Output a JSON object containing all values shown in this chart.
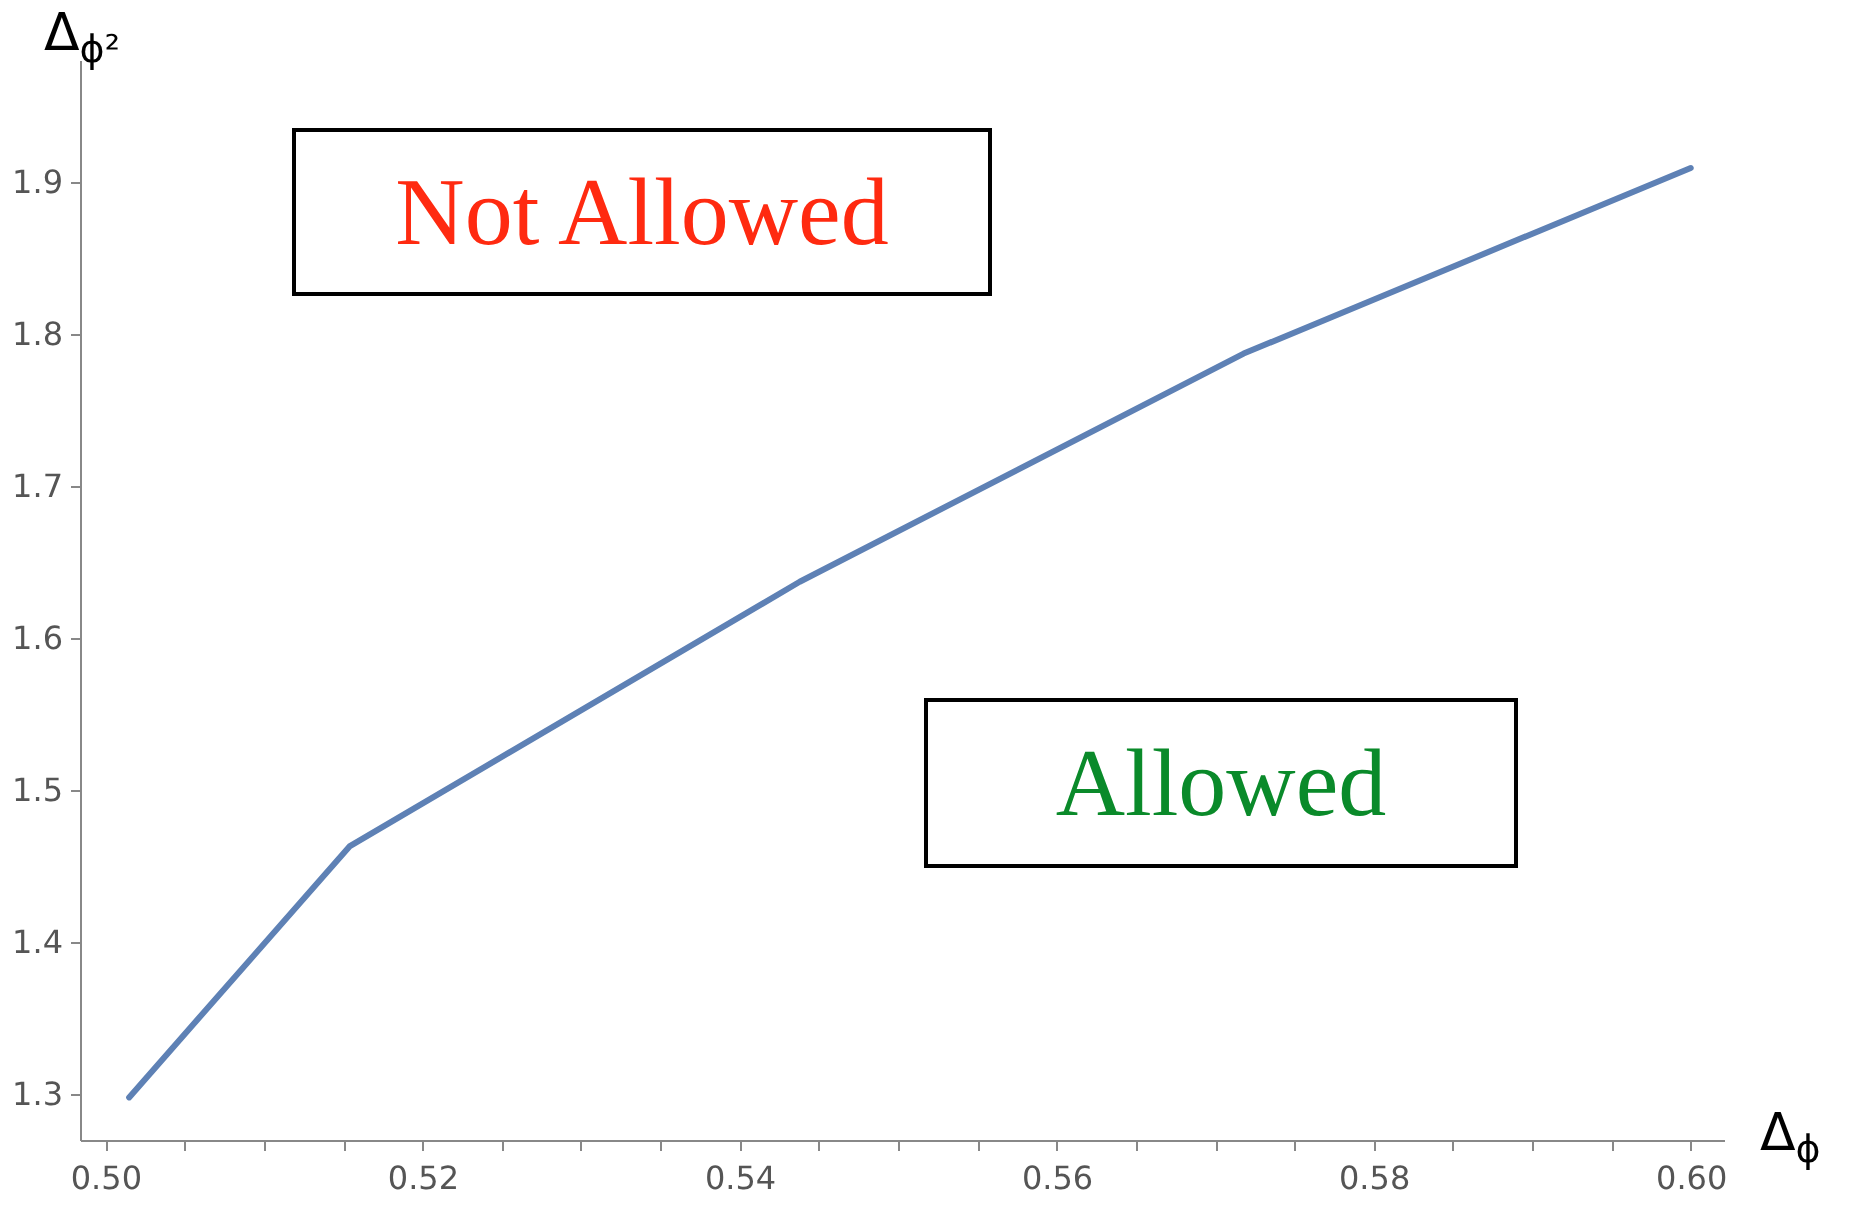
{
  "chart_data": {
    "type": "line",
    "xlabel": "Δ$_{ϕ}$",
    "ylabel": "Δ$_{ϕ²}$",
    "x": [
      0.5015,
      0.5154,
      0.5438,
      0.5718,
      0.6
    ],
    "series": [
      {
        "color": "#5e81b5",
        "values": [
          1.298,
          1.463,
          1.637,
          1.787,
          1.909
        ]
      }
    ],
    "xlim": [
      0.4984,
      0.6021
    ],
    "ylim": [
      1.27,
      1.98
    ],
    "xticks": [
      {
        "value": 0.5,
        "label": "0.50"
      },
      {
        "value": 0.505,
        "label": null
      },
      {
        "value": 0.51,
        "label": null
      },
      {
        "value": 0.515,
        "label": null
      },
      0.52,
      {
        "value": 0.525,
        "label": null
      },
      {
        "value": 0.53,
        "label": null
      },
      {
        "value": 0.535,
        "label": null
      },
      0.54,
      {
        "value": 0.545,
        "label": null
      },
      {
        "value": 0.55,
        "label": null
      },
      {
        "value": 0.555,
        "label": null
      },
      0.56,
      {
        "value": 0.565,
        "label": null
      },
      {
        "value": 0.57,
        "label": null
      },
      {
        "value": 0.575,
        "label": null
      },
      0.58,
      {
        "value": 0.585,
        "label": null
      },
      {
        "value": 0.59,
        "label": null
      },
      {
        "value": 0.595,
        "label": null
      },
      {
        "value": 0.6,
        "label": "0.60"
      }
    ],
    "yticks": [
      1.3,
      1.4,
      1.5,
      1.6,
      1.7,
      1.8,
      1.9
    ],
    "annotations": [
      "Not Allowed",
      "Allowed"
    ],
    "grid": false,
    "marker": "none",
    "line_style": "solid"
  }
}
